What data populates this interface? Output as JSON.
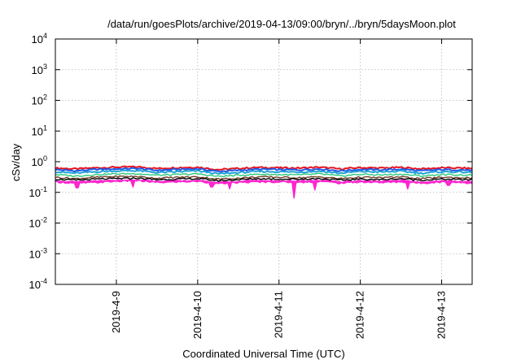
{
  "chart_data": {
    "type": "line",
    "title": "/data/run/goesPlots/archive/2019-04-13/09:00/bryn/../bryn/5daysMoon.plot",
    "xlabel": "Coordinated Universal Time (UTC)",
    "ylabel": "cSv/day",
    "yscale": "log",
    "ylim": [
      0.0001,
      10000
    ],
    "yticks": [
      {
        "value": 0.0001,
        "base": "10",
        "exp": "-4"
      },
      {
        "value": 0.001,
        "base": "10",
        "exp": "-3"
      },
      {
        "value": 0.01,
        "base": "10",
        "exp": "-2"
      },
      {
        "value": 0.1,
        "base": "10",
        "exp": "-1"
      },
      {
        "value": 1,
        "base": "10",
        "exp": "0"
      },
      {
        "value": 10,
        "base": "10",
        "exp": "1"
      },
      {
        "value": 100,
        "base": "10",
        "exp": "2"
      },
      {
        "value": 1000,
        "base": "10",
        "exp": "3"
      },
      {
        "value": 10000,
        "base": "10",
        "exp": "4"
      }
    ],
    "xlim": [
      "2019-04-08 06:00",
      "2019-04-13 09:00"
    ],
    "xticks": [
      {
        "value": "2019-04-09 00:00",
        "label": "2019-4-9"
      },
      {
        "value": "2019-04-10 00:00",
        "label": "2019-4-10"
      },
      {
        "value": "2019-04-11 00:00",
        "label": "2019-4-11"
      },
      {
        "value": "2019-04-12 00:00",
        "label": "2019-4-12"
      },
      {
        "value": "2019-04-13 00:00",
        "label": "2019-4-13"
      }
    ],
    "grid": true,
    "x": [
      "2019-04-08 06:00",
      "2019-04-08 12:00",
      "2019-04-08 18:00",
      "2019-04-09 00:00",
      "2019-04-09 06:00",
      "2019-04-09 12:00",
      "2019-04-09 18:00",
      "2019-04-10 00:00",
      "2019-04-10 06:00",
      "2019-04-10 12:00",
      "2019-04-10 18:00",
      "2019-04-11 00:00",
      "2019-04-11 06:00",
      "2019-04-11 12:00",
      "2019-04-11 18:00",
      "2019-04-12 00:00",
      "2019-04-12 06:00",
      "2019-04-12 12:00",
      "2019-04-12 18:00",
      "2019-04-13 00:00",
      "2019-04-13 06:00",
      "2019-04-13 09:00"
    ],
    "series": [
      {
        "color": "#e8141e",
        "values": [
          0.62,
          0.58,
          0.63,
          0.66,
          0.68,
          0.6,
          0.64,
          0.66,
          0.55,
          0.6,
          0.65,
          0.63,
          0.62,
          0.66,
          0.58,
          0.64,
          0.62,
          0.65,
          0.58,
          0.63,
          0.62,
          0.6
        ]
      },
      {
        "color": "#1e5ae6",
        "values": [
          0.55,
          0.5,
          0.56,
          0.58,
          0.6,
          0.52,
          0.56,
          0.58,
          0.48,
          0.52,
          0.57,
          0.55,
          0.54,
          0.58,
          0.5,
          0.56,
          0.54,
          0.57,
          0.5,
          0.55,
          0.54,
          0.52
        ]
      },
      {
        "color": "#21a2d4",
        "values": [
          0.47,
          0.42,
          0.47,
          0.5,
          0.51,
          0.44,
          0.47,
          0.5,
          0.4,
          0.44,
          0.48,
          0.47,
          0.46,
          0.49,
          0.42,
          0.48,
          0.46,
          0.49,
          0.42,
          0.47,
          0.46,
          0.44
        ]
      },
      {
        "color": "#28c878",
        "values": [
          0.38,
          0.34,
          0.38,
          0.4,
          0.41,
          0.36,
          0.38,
          0.4,
          0.33,
          0.36,
          0.39,
          0.38,
          0.37,
          0.4,
          0.34,
          0.39,
          0.37,
          0.39,
          0.34,
          0.38,
          0.37,
          0.36
        ]
      },
      {
        "color": "#6e3c28",
        "values": [
          0.31,
          0.28,
          0.31,
          0.33,
          0.33,
          0.29,
          0.31,
          0.32,
          0.27,
          0.29,
          0.32,
          0.31,
          0.3,
          0.32,
          0.28,
          0.31,
          0.3,
          0.32,
          0.28,
          0.31,
          0.3,
          0.29
        ]
      },
      {
        "color": "#000000",
        "values": [
          0.27,
          0.25,
          0.27,
          0.28,
          0.29,
          0.26,
          0.27,
          0.28,
          0.24,
          0.26,
          0.28,
          0.27,
          0.27,
          0.28,
          0.25,
          0.27,
          0.26,
          0.28,
          0.25,
          0.27,
          0.26,
          0.26
        ]
      },
      {
        "color": "#ff1ecc",
        "values": [
          0.22,
          0.2,
          0.21,
          0.23,
          0.24,
          0.21,
          0.22,
          0.23,
          0.19,
          0.21,
          0.22,
          0.22,
          0.21,
          0.23,
          0.2,
          0.22,
          0.21,
          0.22,
          0.2,
          0.22,
          0.21,
          0.2
        ]
      }
    ],
    "dips": [
      {
        "x": "2019-04-08 12:30",
        "value": 0.14
      },
      {
        "x": "2019-04-09 05:00",
        "value": 0.15
      },
      {
        "x": "2019-04-10 04:00",
        "value": 0.15
      },
      {
        "x": "2019-04-10 09:30",
        "value": 0.13
      },
      {
        "x": "2019-04-11 04:30",
        "value": 0.065
      },
      {
        "x": "2019-04-11 10:30",
        "value": 0.12
      },
      {
        "x": "2019-04-12 14:00",
        "value": 0.13
      },
      {
        "x": "2019-04-13 02:00",
        "value": 0.17
      }
    ]
  }
}
